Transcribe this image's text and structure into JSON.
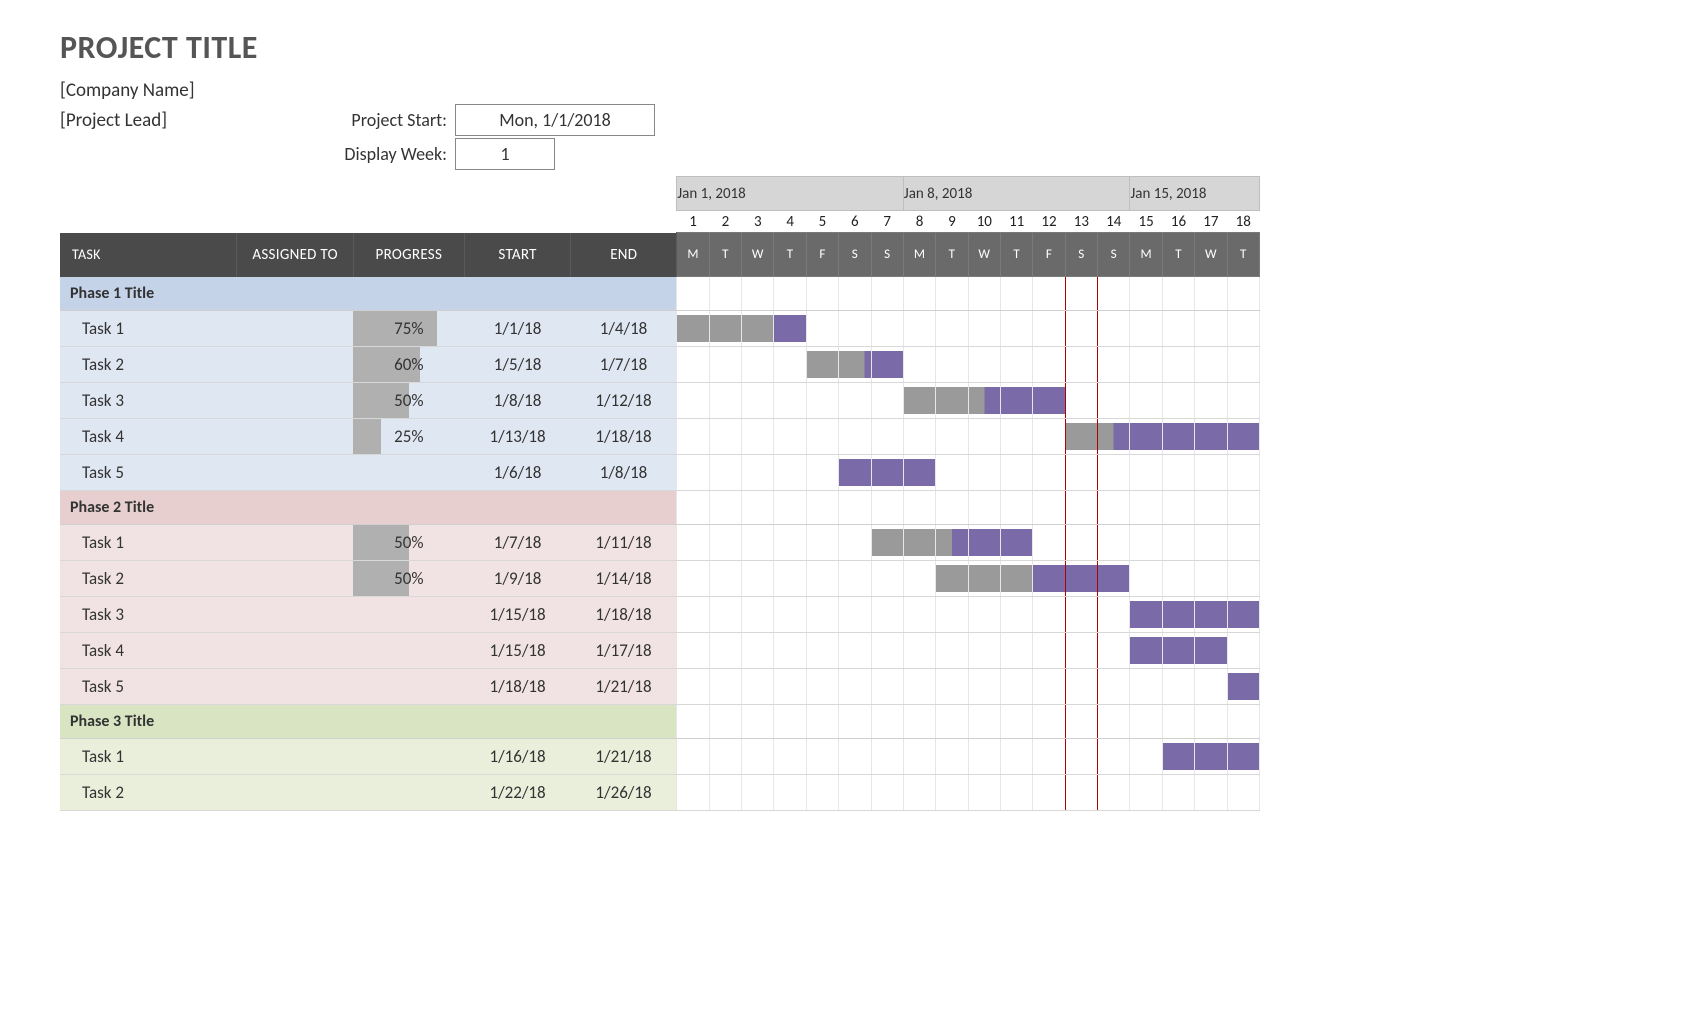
{
  "header": {
    "title": "PROJECT TITLE",
    "company": "[Company Name]",
    "lead": "[Project Lead]",
    "project_start_label": "Project Start:",
    "project_start_value": "Mon, 1/1/2018",
    "display_week_label": "Display Week:",
    "display_week_value": "1"
  },
  "columns": {
    "task": "TASK",
    "assigned": "ASSIGNED TO",
    "progress": "PROGRESS",
    "start": "START",
    "end": "END"
  },
  "layout": {
    "col_widths": {
      "task": 175,
      "assigned": 115,
      "progress": 110,
      "start": 105,
      "end": 105,
      "day": 32
    },
    "day_count": 18,
    "today_marker_cols": [
      12,
      13
    ],
    "font": {
      "title_size": 32,
      "body_size": 17,
      "header_size": 13
    }
  },
  "colors": {
    "header_bg": "#4a4a4a",
    "header_day_bg": "#6a6a6a",
    "header_fg": "#ffffff",
    "week_hdr_bg": "#d6d6d6",
    "grid_line": "#e6e6e6",
    "row_line": "#d8d8d8",
    "progress_fill": "#b0b0b0",
    "bar_done": "#9a9a9a",
    "bar_remaining": "#7b6aa8",
    "today_line": "#b00000",
    "phase_colors": [
      "#c5d3e8",
      "#e8cfcf",
      "#d9e4c3"
    ],
    "phase_row_tints": [
      "#dfe7f2",
      "#f1e3e3",
      "#e9efdb"
    ]
  },
  "timeline": {
    "weeks": [
      {
        "label": "Jan 1, 2018",
        "span": 7
      },
      {
        "label": "Jan 8, 2018",
        "span": 7
      },
      {
        "label": "Jan 15, 2018",
        "span": 4
      }
    ],
    "day_numbers": [
      "1",
      "2",
      "3",
      "4",
      "5",
      "6",
      "7",
      "8",
      "9",
      "10",
      "11",
      "12",
      "13",
      "14",
      "15",
      "16",
      "17",
      "18"
    ],
    "day_letters": [
      "M",
      "T",
      "W",
      "T",
      "F",
      "S",
      "S",
      "M",
      "T",
      "W",
      "T",
      "F",
      "S",
      "S",
      "M",
      "T",
      "W",
      "T"
    ]
  },
  "phases": [
    {
      "title": "Phase 1 Title",
      "tasks": [
        {
          "name": "Task 1",
          "assigned": "",
          "progress": 75,
          "start": "1/1/18",
          "end": "1/4/18",
          "bar_start": 1,
          "bar_end": 4
        },
        {
          "name": "Task 2",
          "assigned": "",
          "progress": 60,
          "start": "1/5/18",
          "end": "1/7/18",
          "bar_start": 5,
          "bar_end": 7
        },
        {
          "name": "Task 3",
          "assigned": "",
          "progress": 50,
          "start": "1/8/18",
          "end": "1/12/18",
          "bar_start": 8,
          "bar_end": 12
        },
        {
          "name": "Task 4",
          "assigned": "",
          "progress": 25,
          "start": "1/13/18",
          "end": "1/18/18",
          "bar_start": 13,
          "bar_end": 18
        },
        {
          "name": "Task 5",
          "assigned": "",
          "progress": null,
          "start": "1/6/18",
          "end": "1/8/18",
          "bar_start": 6,
          "bar_end": 8
        }
      ]
    },
    {
      "title": "Phase 2 Title",
      "tasks": [
        {
          "name": "Task 1",
          "assigned": "",
          "progress": 50,
          "start": "1/7/18",
          "end": "1/11/18",
          "bar_start": 7,
          "bar_end": 11
        },
        {
          "name": "Task 2",
          "assigned": "",
          "progress": 50,
          "start": "1/9/18",
          "end": "1/14/18",
          "bar_start": 9,
          "bar_end": 14
        },
        {
          "name": "Task 3",
          "assigned": "",
          "progress": null,
          "start": "1/15/18",
          "end": "1/18/18",
          "bar_start": 15,
          "bar_end": 18
        },
        {
          "name": "Task 4",
          "assigned": "",
          "progress": null,
          "start": "1/15/18",
          "end": "1/17/18",
          "bar_start": 15,
          "bar_end": 17
        },
        {
          "name": "Task 5",
          "assigned": "",
          "progress": null,
          "start": "1/18/18",
          "end": "1/21/18",
          "bar_start": 18,
          "bar_end": 18
        }
      ]
    },
    {
      "title": "Phase 3 Title",
      "tasks": [
        {
          "name": "Task 1",
          "assigned": "",
          "progress": null,
          "start": "1/16/18",
          "end": "1/21/18",
          "bar_start": 16,
          "bar_end": 18
        },
        {
          "name": "Task 2",
          "assigned": "",
          "progress": null,
          "start": "1/22/18",
          "end": "1/26/18",
          "bar_start": null,
          "bar_end": null
        }
      ]
    }
  ]
}
